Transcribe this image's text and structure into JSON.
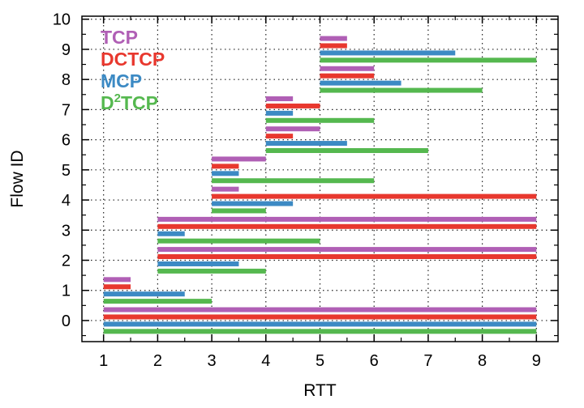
{
  "chart_data": {
    "type": "bar",
    "orientation": "horizontal-range",
    "xlabel": "RTT",
    "ylabel": "Flow ID",
    "xlim": [
      0.6,
      9.4
    ],
    "ylim": [
      -0.7,
      10.1
    ],
    "xticks": [
      "1",
      "2",
      "3",
      "4",
      "5",
      "6",
      "7",
      "8",
      "9"
    ],
    "yticks": [
      "0",
      "1",
      "2",
      "3",
      "4",
      "5",
      "6",
      "7",
      "8",
      "9",
      "10"
    ],
    "grid": true,
    "legend_position": "top-left",
    "series": [
      {
        "name": "TCP",
        "color": "#b05fb5",
        "offset": 0.36
      },
      {
        "name": "DCTCP",
        "color": "#e8382e",
        "offset": 0.12
      },
      {
        "name": "MCP",
        "color": "#3c8ac4",
        "offset": -0.12
      },
      {
        "name": "D2TCP",
        "color": "#55b84f",
        "offset": -0.36
      }
    ],
    "legend": [
      {
        "series": "TCP",
        "text": "TCP",
        "sup": ""
      },
      {
        "series": "DCTCP",
        "text": "DCTCP",
        "sup": ""
      },
      {
        "series": "MCP",
        "text": "MCP",
        "sup": ""
      },
      {
        "series": "D2TCP",
        "text": "D",
        "sup": "2",
        "rest": "TCP"
      }
    ],
    "flows": [
      {
        "flow": 0,
        "TCP": [
          1,
          9
        ],
        "DCTCP": [
          1,
          9
        ],
        "MCP": [
          1,
          9
        ],
        "D2TCP": [
          1,
          9
        ]
      },
      {
        "flow": 1,
        "TCP": [
          1,
          1.5
        ],
        "DCTCP": [
          1,
          1.5
        ],
        "MCP": [
          1,
          2.5
        ],
        "D2TCP": [
          1,
          3
        ]
      },
      {
        "flow": 2,
        "TCP": [
          2,
          9
        ],
        "DCTCP": [
          2,
          9
        ],
        "MCP": [
          2,
          3.5
        ],
        "D2TCP": [
          2,
          4
        ]
      },
      {
        "flow": 3,
        "TCP": [
          2,
          9
        ],
        "DCTCP": [
          2,
          9
        ],
        "MCP": [
          2,
          2.5
        ],
        "D2TCP": [
          2,
          5
        ]
      },
      {
        "flow": 4,
        "TCP": [
          3,
          3.5
        ],
        "DCTCP": [
          3,
          9
        ],
        "MCP": [
          3,
          4.5
        ],
        "D2TCP": [
          3,
          4
        ]
      },
      {
        "flow": 5,
        "TCP": [
          3,
          4
        ],
        "DCTCP": [
          3,
          3.5
        ],
        "MCP": [
          3,
          3.5
        ],
        "D2TCP": [
          3,
          6
        ]
      },
      {
        "flow": 6,
        "TCP": [
          4,
          5
        ],
        "DCTCP": [
          4,
          4.5
        ],
        "MCP": [
          4,
          5.5
        ],
        "D2TCP": [
          4,
          7
        ]
      },
      {
        "flow": 7,
        "TCP": [
          4,
          4.5
        ],
        "DCTCP": [
          4,
          5
        ],
        "MCP": [
          4,
          4.5
        ],
        "D2TCP": [
          4,
          6
        ]
      },
      {
        "flow": 8,
        "TCP": [
          5,
          6
        ],
        "DCTCP": [
          5,
          6
        ],
        "MCP": [
          5,
          6.5
        ],
        "D2TCP": [
          5,
          8
        ]
      },
      {
        "flow": 9,
        "TCP": [
          5,
          5.5
        ],
        "DCTCP": [
          5,
          5.5
        ],
        "MCP": [
          5,
          7.5
        ],
        "D2TCP": [
          5,
          9
        ]
      }
    ]
  }
}
